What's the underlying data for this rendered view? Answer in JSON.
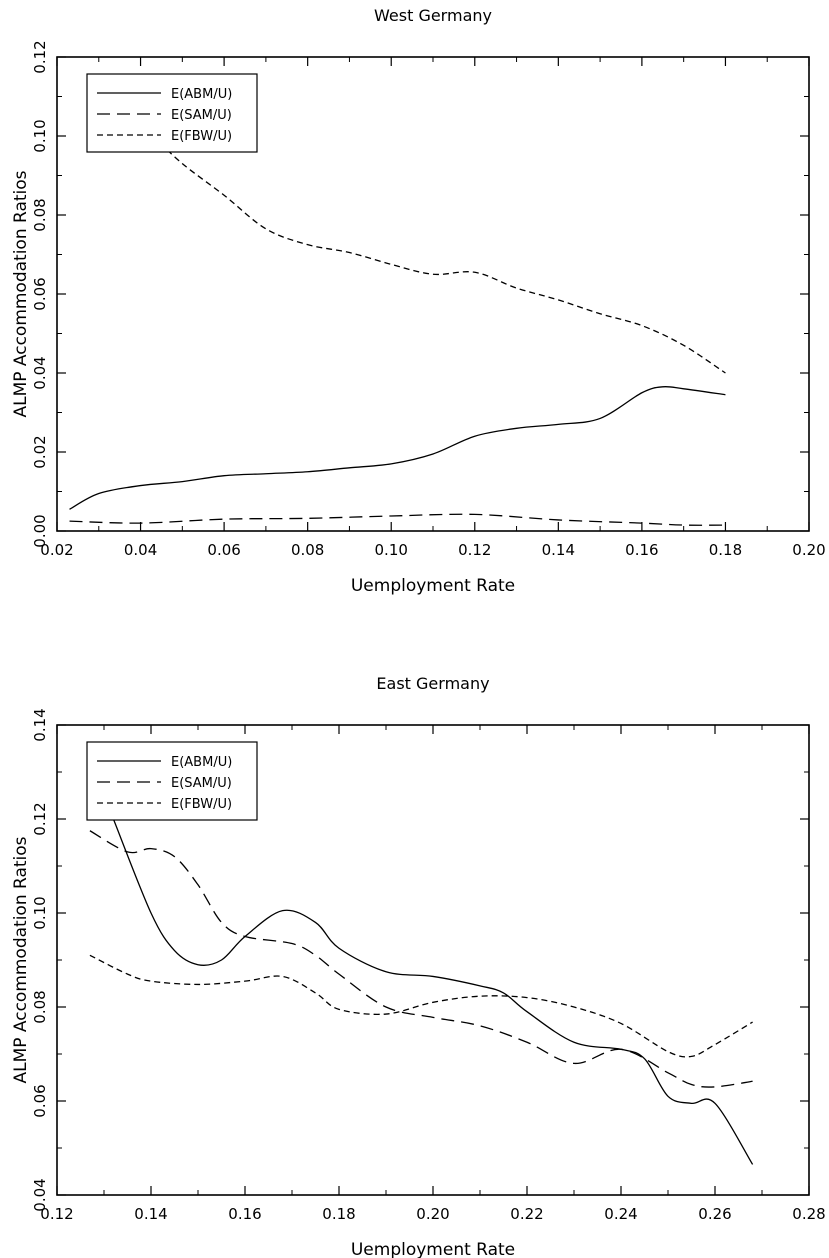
{
  "chart_data": [
    {
      "type": "line",
      "title": "West Germany",
      "xlabel": "Uemployment Rate",
      "ylabel": "ALMP Accommodation Ratios",
      "xlim": [
        0.02,
        0.2
      ],
      "ylim": [
        0.0,
        0.12
      ],
      "xticks": [
        0.02,
        0.04,
        0.06,
        0.08,
        0.1,
        0.12,
        0.14,
        0.16,
        0.18,
        0.2
      ],
      "xtick_labels": [
        "0.02",
        "0.04",
        "0.06",
        "0.08",
        "0.10",
        "0.12",
        "0.14",
        "0.16",
        "0.18",
        "0.20"
      ],
      "yticks": [
        0.0,
        0.02,
        0.04,
        0.06,
        0.08,
        0.1,
        0.12
      ],
      "ytick_labels": [
        "0.00",
        "0.02",
        "0.04",
        "0.06",
        "0.08",
        "0.10",
        "0.12"
      ],
      "grid": false,
      "legend": "top-left",
      "series": [
        {
          "name": "E(ABM/U)",
          "style": "solid",
          "x": [
            0.023,
            0.03,
            0.04,
            0.05,
            0.06,
            0.07,
            0.08,
            0.09,
            0.1,
            0.11,
            0.12,
            0.13,
            0.14,
            0.15,
            0.16,
            0.165,
            0.17,
            0.18
          ],
          "y": [
            0.0055,
            0.0095,
            0.0115,
            0.0125,
            0.014,
            0.0145,
            0.015,
            0.016,
            0.017,
            0.0195,
            0.024,
            0.026,
            0.027,
            0.0285,
            0.035,
            0.0365,
            0.036,
            0.0345
          ]
        },
        {
          "name": "E(SAM/U)",
          "style": "long-dash",
          "x": [
            0.023,
            0.04,
            0.06,
            0.08,
            0.1,
            0.12,
            0.14,
            0.16,
            0.17,
            0.18
          ],
          "y": [
            0.0025,
            0.002,
            0.003,
            0.0032,
            0.0038,
            0.0042,
            0.0028,
            0.002,
            0.0015,
            0.0015
          ]
        },
        {
          "name": "E(FBW/U)",
          "style": "short-dash",
          "x": [
            0.043,
            0.05,
            0.06,
            0.07,
            0.08,
            0.09,
            0.1,
            0.11,
            0.12,
            0.13,
            0.14,
            0.15,
            0.16,
            0.17,
            0.18
          ],
          "y": [
            0.1,
            0.093,
            0.085,
            0.0765,
            0.0725,
            0.0705,
            0.0675,
            0.065,
            0.0655,
            0.0615,
            0.0585,
            0.055,
            0.052,
            0.047,
            0.04
          ]
        }
      ]
    },
    {
      "type": "line",
      "title": "East Germany",
      "xlabel": "Uemployment Rate",
      "ylabel": "ALMP Accommodation Ratios",
      "xlim": [
        0.12,
        0.28
      ],
      "ylim": [
        0.04,
        0.14
      ],
      "xticks": [
        0.12,
        0.14,
        0.16,
        0.18,
        0.2,
        0.22,
        0.24,
        0.26,
        0.28
      ],
      "xtick_labels": [
        "0.12",
        "0.14",
        "0.16",
        "0.18",
        "0.20",
        "0.22",
        "0.24",
        "0.26",
        "0.28"
      ],
      "yticks": [
        0.04,
        0.06,
        0.08,
        0.1,
        0.12,
        0.14
      ],
      "ytick_labels": [
        "0.04",
        "0.06",
        "0.08",
        "0.10",
        "0.12",
        "0.14"
      ],
      "grid": false,
      "legend": "top-left",
      "series": [
        {
          "name": "E(ABM/U)",
          "style": "solid",
          "x": [
            0.132,
            0.14,
            0.145,
            0.15,
            0.155,
            0.16,
            0.168,
            0.175,
            0.18,
            0.19,
            0.2,
            0.21,
            0.215,
            0.22,
            0.23,
            0.24,
            0.245,
            0.25,
            0.255,
            0.26,
            0.268
          ],
          "y": [
            0.12,
            0.1,
            0.092,
            0.089,
            0.09,
            0.095,
            0.1005,
            0.098,
            0.0925,
            0.0875,
            0.0865,
            0.0845,
            0.083,
            0.079,
            0.0725,
            0.071,
            0.069,
            0.061,
            0.0595,
            0.0595,
            0.0465
          ]
        },
        {
          "name": "E(SAM/U)",
          "style": "long-dash",
          "x": [
            0.127,
            0.135,
            0.14,
            0.145,
            0.15,
            0.155,
            0.16,
            0.17,
            0.175,
            0.18,
            0.19,
            0.2,
            0.21,
            0.22,
            0.23,
            0.24,
            0.25,
            0.255,
            0.26,
            0.268
          ],
          "y": [
            0.1175,
            0.113,
            0.1137,
            0.112,
            0.106,
            0.098,
            0.095,
            0.0935,
            0.091,
            0.087,
            0.08,
            0.0778,
            0.076,
            0.0725,
            0.068,
            0.071,
            0.066,
            0.0635,
            0.063,
            0.0642
          ]
        },
        {
          "name": "E(FBW/U)",
          "style": "short-dash",
          "x": [
            0.127,
            0.135,
            0.14,
            0.15,
            0.16,
            0.168,
            0.175,
            0.18,
            0.19,
            0.2,
            0.21,
            0.22,
            0.23,
            0.24,
            0.25,
            0.255,
            0.26,
            0.268
          ],
          "y": [
            0.091,
            0.087,
            0.0855,
            0.0848,
            0.0855,
            0.0865,
            0.083,
            0.0795,
            0.0785,
            0.081,
            0.0823,
            0.082,
            0.08,
            0.0765,
            0.0705,
            0.0695,
            0.072,
            0.0768
          ]
        }
      ]
    }
  ]
}
